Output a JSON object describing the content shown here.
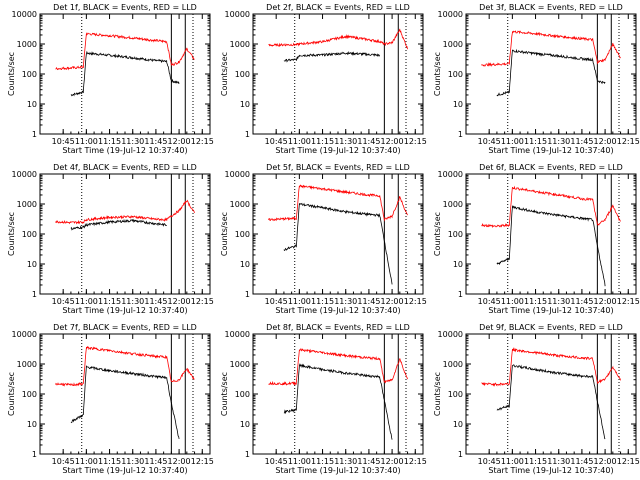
{
  "figure": {
    "start_time_label": "Start Time (19-Jul-12 10:37:40)",
    "ylabel": "Counts/sec",
    "x_tick_labels": [
      "10:45",
      "11:00",
      "11:15",
      "11:30",
      "11:45",
      "12:00",
      "12:15"
    ],
    "y_tick_labels": [
      "1",
      "10",
      "100",
      "1000",
      "10000"
    ]
  },
  "colors": {
    "events": "#000000",
    "lld": "#ff0000",
    "axes": "#000000",
    "background": "#ffffff"
  },
  "chart_data": [
    {
      "type": "line",
      "title": "Det 1f, BLACK = Events, RED = LLD",
      "xlabel": "Start Time (19-Jul-12 10:37:40)",
      "ylabel": "Counts/sec",
      "yscale": "log",
      "ylim": [
        1,
        10000
      ],
      "x": [
        "10:40",
        "10:50",
        "10:58",
        "11:00",
        "11:15",
        "11:30",
        "11:45",
        "11:52",
        "11:55",
        "12:00",
        "12:05",
        "12:10"
      ],
      "series": [
        {
          "name": "Events",
          "color": "#000000",
          "values": [
            null,
            20,
            25,
            500,
            420,
            350,
            280,
            260,
            60,
            50,
            null,
            null
          ]
        },
        {
          "name": "LLD",
          "color": "#ff0000",
          "values": [
            150,
            160,
            170,
            2200,
            1900,
            1600,
            1300,
            1200,
            200,
            250,
            700,
            300
          ]
        }
      ]
    },
    {
      "type": "line",
      "title": "Det 2f, BLACK = Events, RED = LLD",
      "xlabel": "Start Time (19-Jul-12 10:37:40)",
      "ylabel": "Counts/sec",
      "yscale": "log",
      "ylim": [
        1,
        10000
      ],
      "x": [
        "10:40",
        "10:50",
        "10:58",
        "11:00",
        "11:15",
        "11:30",
        "11:45",
        "11:52",
        "11:55",
        "12:00",
        "12:05",
        "12:10"
      ],
      "series": [
        {
          "name": "Events",
          "color": "#000000",
          "values": [
            null,
            280,
            300,
            420,
            430,
            500,
            450,
            420,
            null,
            null,
            null,
            null
          ]
        },
        {
          "name": "LLD",
          "color": "#ff0000",
          "values": [
            900,
            950,
            950,
            1000,
            1200,
            1800,
            1400,
            1200,
            1000,
            1100,
            3000,
            700
          ]
        }
      ]
    },
    {
      "type": "line",
      "title": "Det 3f, BLACK = Events, RED = LLD",
      "xlabel": "Start Time (19-Jul-12 10:37:40)",
      "ylabel": "Counts/sec",
      "yscale": "log",
      "ylim": [
        1,
        10000
      ],
      "x": [
        "10:40",
        "10:50",
        "10:58",
        "11:00",
        "11:15",
        "11:30",
        "11:45",
        "11:52",
        "11:55",
        "12:00",
        "12:05",
        "12:10"
      ],
      "series": [
        {
          "name": "Events",
          "color": "#000000",
          "values": [
            null,
            20,
            25,
            600,
            480,
            400,
            320,
            300,
            60,
            50,
            null,
            null
          ]
        },
        {
          "name": "LLD",
          "color": "#ff0000",
          "values": [
            200,
            210,
            220,
            2600,
            2200,
            1800,
            1500,
            1400,
            250,
            300,
            1000,
            350
          ]
        }
      ]
    },
    {
      "type": "line",
      "title": "Det 4f, BLACK = Events, RED = LLD",
      "xlabel": "Start Time (19-Jul-12 10:37:40)",
      "ylabel": "Counts/sec",
      "yscale": "log",
      "ylim": [
        1,
        10000
      ],
      "x": [
        "10:40",
        "10:50",
        "10:58",
        "11:00",
        "11:15",
        "11:30",
        "11:45",
        "11:52",
        "11:55",
        "12:00",
        "12:05",
        "12:10"
      ],
      "series": [
        {
          "name": "Events",
          "color": "#000000",
          "values": [
            null,
            150,
            170,
            200,
            250,
            280,
            220,
            200,
            null,
            null,
            null,
            null
          ]
        },
        {
          "name": "LLD",
          "color": "#ff0000",
          "values": [
            260,
            240,
            250,
            300,
            360,
            380,
            310,
            300,
            400,
            600,
            1300,
            500
          ]
        }
      ]
    },
    {
      "type": "line",
      "title": "Det 5f, BLACK = Events, RED = LLD",
      "xlabel": "Start Time (19-Jul-12 10:37:40)",
      "ylabel": "Counts/sec",
      "yscale": "log",
      "ylim": [
        1,
        10000
      ],
      "x": [
        "10:40",
        "10:50",
        "10:58",
        "11:00",
        "11:15",
        "11:30",
        "11:45",
        "11:52",
        "11:55",
        "12:00",
        "12:05",
        "12:10"
      ],
      "series": [
        {
          "name": "Events",
          "color": "#000000",
          "values": [
            null,
            30,
            40,
            1000,
            750,
            550,
            450,
            420,
            60,
            2,
            null,
            null
          ]
        },
        {
          "name": "LLD",
          "color": "#ff0000",
          "values": [
            300,
            320,
            330,
            4000,
            3200,
            2500,
            2000,
            1900,
            300,
            400,
            1700,
            400
          ]
        }
      ]
    },
    {
      "type": "line",
      "title": "Det 6f, BLACK = Events, RED = LLD",
      "xlabel": "Start Time (19-Jul-12 10:37:40)",
      "ylabel": "Counts/sec",
      "yscale": "log",
      "ylim": [
        1,
        10000
      ],
      "x": [
        "10:40",
        "10:50",
        "10:58",
        "11:00",
        "11:15",
        "11:30",
        "11:45",
        "11:52",
        "11:55",
        "12:00",
        "12:05",
        "12:10"
      ],
      "series": [
        {
          "name": "Events",
          "color": "#000000",
          "values": [
            null,
            10,
            15,
            800,
            550,
            420,
            330,
            300,
            40,
            2,
            null,
            null
          ]
        },
        {
          "name": "LLD",
          "color": "#ff0000",
          "values": [
            200,
            180,
            200,
            3500,
            2600,
            2000,
            1500,
            1400,
            200,
            300,
            900,
            250
          ]
        }
      ]
    },
    {
      "type": "line",
      "title": "Det 7f, BLACK = Events, RED = LLD",
      "xlabel": "Start Time (19-Jul-12 10:37:40)",
      "ylabel": "Counts/sec",
      "yscale": "log",
      "ylim": [
        1,
        10000
      ],
      "x": [
        "10:40",
        "10:50",
        "10:58",
        "11:00",
        "11:15",
        "11:30",
        "11:45",
        "11:52",
        "11:55",
        "12:00",
        "12:05",
        "12:10"
      ],
      "series": [
        {
          "name": "Events",
          "color": "#000000",
          "values": [
            null,
            12,
            20,
            800,
            600,
            480,
            380,
            350,
            50,
            3,
            null,
            null
          ]
        },
        {
          "name": "LLD",
          "color": "#ff0000",
          "values": [
            220,
            200,
            220,
            3500,
            2800,
            2200,
            1800,
            1700,
            250,
            300,
            700,
            300
          ]
        }
      ]
    },
    {
      "type": "line",
      "title": "Det 8f, BLACK = Events, RED = LLD",
      "xlabel": "Start Time (19-Jul-12 10:37:40)",
      "ylabel": "Counts/sec",
      "yscale": "log",
      "ylim": [
        1,
        10000
      ],
      "x": [
        "10:40",
        "10:50",
        "10:58",
        "11:00",
        "11:15",
        "11:30",
        "11:45",
        "11:52",
        "11:55",
        "12:00",
        "12:05",
        "12:10"
      ],
      "series": [
        {
          "name": "Events",
          "color": "#000000",
          "values": [
            null,
            25,
            30,
            900,
            650,
            500,
            400,
            380,
            60,
            3,
            null,
            null
          ]
        },
        {
          "name": "LLD",
          "color": "#ff0000",
          "values": [
            230,
            220,
            230,
            3000,
            2400,
            1900,
            1600,
            1500,
            250,
            300,
            1500,
            300
          ]
        }
      ]
    },
    {
      "type": "line",
      "title": "Det 9f, BLACK = Events, RED = LLD",
      "xlabel": "Start Time (19-Jul-12 10:37:40)",
      "ylabel": "Counts/sec",
      "yscale": "log",
      "ylim": [
        1,
        10000
      ],
      "x": [
        "10:40",
        "10:50",
        "10:58",
        "11:00",
        "11:15",
        "11:30",
        "11:45",
        "11:52",
        "11:55",
        "12:00",
        "12:05",
        "12:10"
      ],
      "series": [
        {
          "name": "Events",
          "color": "#000000",
          "values": [
            null,
            30,
            40,
            900,
            650,
            500,
            400,
            380,
            60,
            3,
            null,
            null
          ]
        },
        {
          "name": "LLD",
          "color": "#ff0000",
          "values": [
            220,
            210,
            220,
            3000,
            2400,
            1900,
            1600,
            1500,
            250,
            300,
            800,
            300
          ]
        }
      ]
    }
  ]
}
